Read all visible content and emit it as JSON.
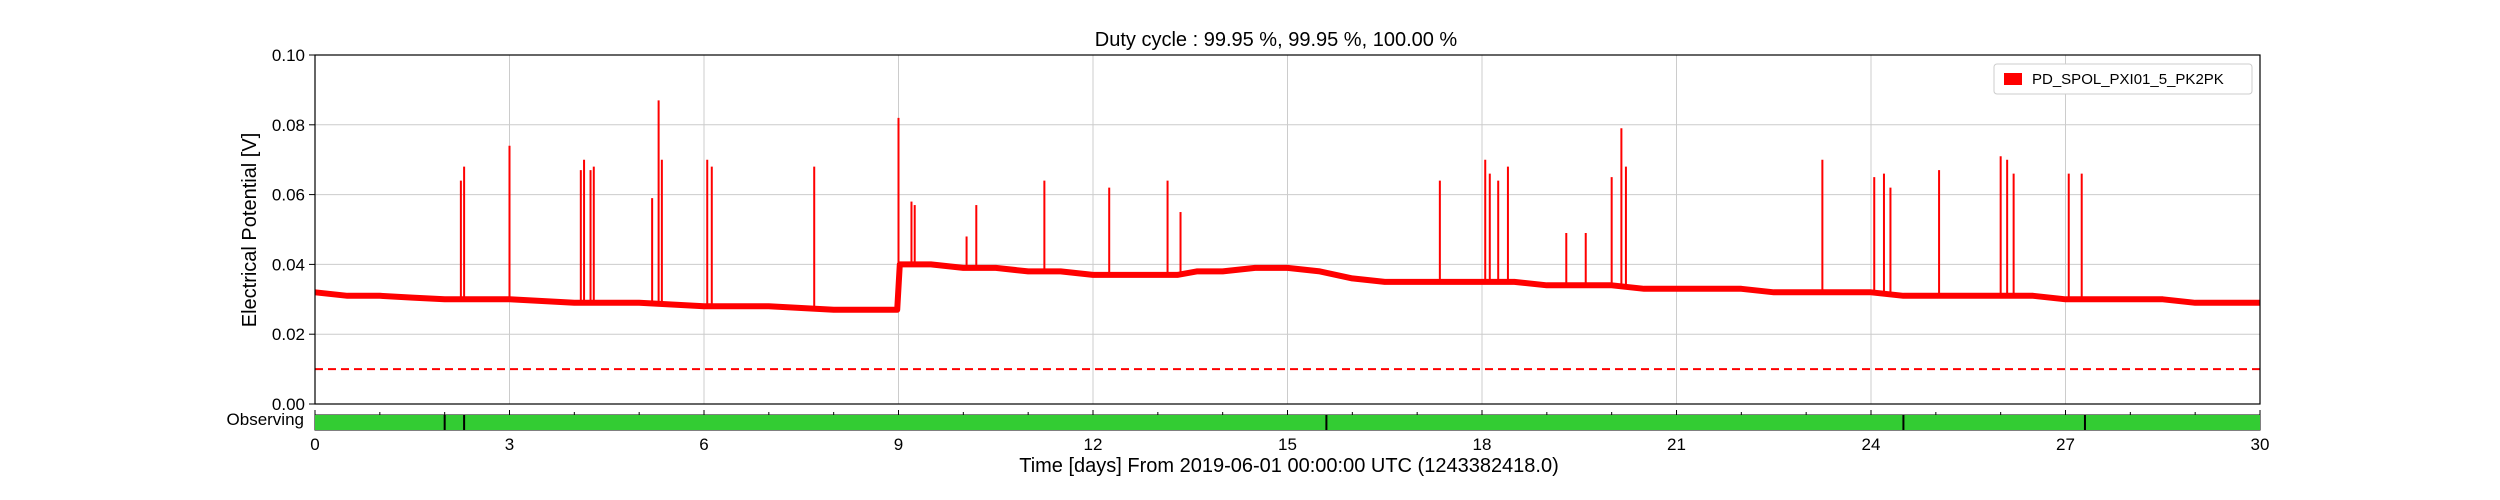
{
  "chart_data": {
    "type": "line",
    "title": "Duty cycle : 99.95 %, 99.95 %, 100.00 %",
    "xlabel": "Time [days] From 2019-06-01 00:00:00 UTC (1243382418.0)",
    "ylabel": "Electrical Potential [V]",
    "xlim": [
      0,
      30
    ],
    "ylim": [
      0,
      0.1
    ],
    "x_ticks": [
      0,
      3,
      6,
      9,
      12,
      15,
      18,
      21,
      24,
      27,
      30
    ],
    "x_tick_labels": [
      "0",
      "3",
      "6",
      "9",
      "12",
      "15",
      "18",
      "21",
      "24",
      "27",
      "30"
    ],
    "y_ticks": [
      0,
      0.02,
      0.04,
      0.06,
      0.08,
      0.1
    ],
    "y_tick_labels": [
      "0.00",
      "0.02",
      "0.04",
      "0.06",
      "0.08",
      "0.10"
    ],
    "grid": true,
    "legend_position": "top-right",
    "colors": {
      "series": "#ff0000",
      "observing": "#33cc33",
      "grid": "#cccccc"
    },
    "series": [
      {
        "name": "PD_SPOL_PXI01_5_PK2PK",
        "baseline_x": [
          0,
          0.5,
          1,
          1.5,
          2,
          2.5,
          3,
          3.5,
          4,
          4.5,
          5,
          5.5,
          6,
          6.5,
          7,
          7.5,
          8,
          8.5,
          8.98,
          9.02,
          9.5,
          10,
          10.5,
          11,
          11.5,
          12,
          12.5,
          13,
          13.3,
          13.6,
          14,
          14.5,
          15,
          15.5,
          16,
          16.5,
          17,
          17.5,
          18,
          18.5,
          19,
          19.5,
          20,
          20.5,
          21,
          21.5,
          22,
          22.5,
          23,
          23.5,
          24,
          24.5,
          25,
          25.5,
          26,
          26.5,
          27,
          27.5,
          28,
          28.5,
          29,
          29.5,
          30
        ],
        "baseline_y": [
          0.032,
          0.031,
          0.031,
          0.0305,
          0.03,
          0.03,
          0.03,
          0.0295,
          0.029,
          0.029,
          0.029,
          0.0285,
          0.028,
          0.028,
          0.028,
          0.0275,
          0.027,
          0.027,
          0.027,
          0.04,
          0.04,
          0.039,
          0.039,
          0.038,
          0.038,
          0.037,
          0.037,
          0.037,
          0.037,
          0.038,
          0.038,
          0.039,
          0.039,
          0.038,
          0.036,
          0.035,
          0.035,
          0.035,
          0.035,
          0.035,
          0.034,
          0.034,
          0.034,
          0.033,
          0.033,
          0.033,
          0.033,
          0.032,
          0.032,
          0.032,
          0.032,
          0.031,
          0.031,
          0.031,
          0.031,
          0.031,
          0.03,
          0.03,
          0.03,
          0.03,
          0.029,
          0.029,
          0.029
        ],
        "spikes": [
          {
            "x": 2.25,
            "y": 0.064
          },
          {
            "x": 2.3,
            "y": 0.068
          },
          {
            "x": 3.0,
            "y": 0.074
          },
          {
            "x": 4.1,
            "y": 0.067
          },
          {
            "x": 4.15,
            "y": 0.07
          },
          {
            "x": 4.25,
            "y": 0.067
          },
          {
            "x": 4.3,
            "y": 0.068
          },
          {
            "x": 5.2,
            "y": 0.059
          },
          {
            "x": 5.3,
            "y": 0.087
          },
          {
            "x": 5.35,
            "y": 0.07
          },
          {
            "x": 6.05,
            "y": 0.07
          },
          {
            "x": 6.12,
            "y": 0.068
          },
          {
            "x": 7.7,
            "y": 0.068
          },
          {
            "x": 9.0,
            "y": 0.082
          },
          {
            "x": 9.2,
            "y": 0.058
          },
          {
            "x": 9.25,
            "y": 0.057
          },
          {
            "x": 10.05,
            "y": 0.048
          },
          {
            "x": 10.2,
            "y": 0.057
          },
          {
            "x": 11.25,
            "y": 0.064
          },
          {
            "x": 12.25,
            "y": 0.062
          },
          {
            "x": 13.15,
            "y": 0.064
          },
          {
            "x": 13.35,
            "y": 0.055
          },
          {
            "x": 17.35,
            "y": 0.064
          },
          {
            "x": 18.05,
            "y": 0.07
          },
          {
            "x": 18.12,
            "y": 0.066
          },
          {
            "x": 18.25,
            "y": 0.064
          },
          {
            "x": 18.4,
            "y": 0.068
          },
          {
            "x": 19.3,
            "y": 0.049
          },
          {
            "x": 19.6,
            "y": 0.049
          },
          {
            "x": 20.0,
            "y": 0.065
          },
          {
            "x": 20.15,
            "y": 0.079
          },
          {
            "x": 20.22,
            "y": 0.068
          },
          {
            "x": 23.25,
            "y": 0.07
          },
          {
            "x": 24.05,
            "y": 0.065
          },
          {
            "x": 24.2,
            "y": 0.066
          },
          {
            "x": 24.3,
            "y": 0.062
          },
          {
            "x": 25.05,
            "y": 0.067
          },
          {
            "x": 26.0,
            "y": 0.071
          },
          {
            "x": 26.1,
            "y": 0.07
          },
          {
            "x": 26.2,
            "y": 0.066
          },
          {
            "x": 27.05,
            "y": 0.066
          },
          {
            "x": 27.25,
            "y": 0.066
          }
        ]
      }
    ],
    "threshold": {
      "y": 0.01,
      "style": "dashed"
    },
    "observing": {
      "label": "Observing",
      "segments": [
        [
          0,
          30
        ]
      ],
      "markers": [
        2.0,
        2.3,
        15.6,
        24.5,
        27.3
      ]
    }
  }
}
